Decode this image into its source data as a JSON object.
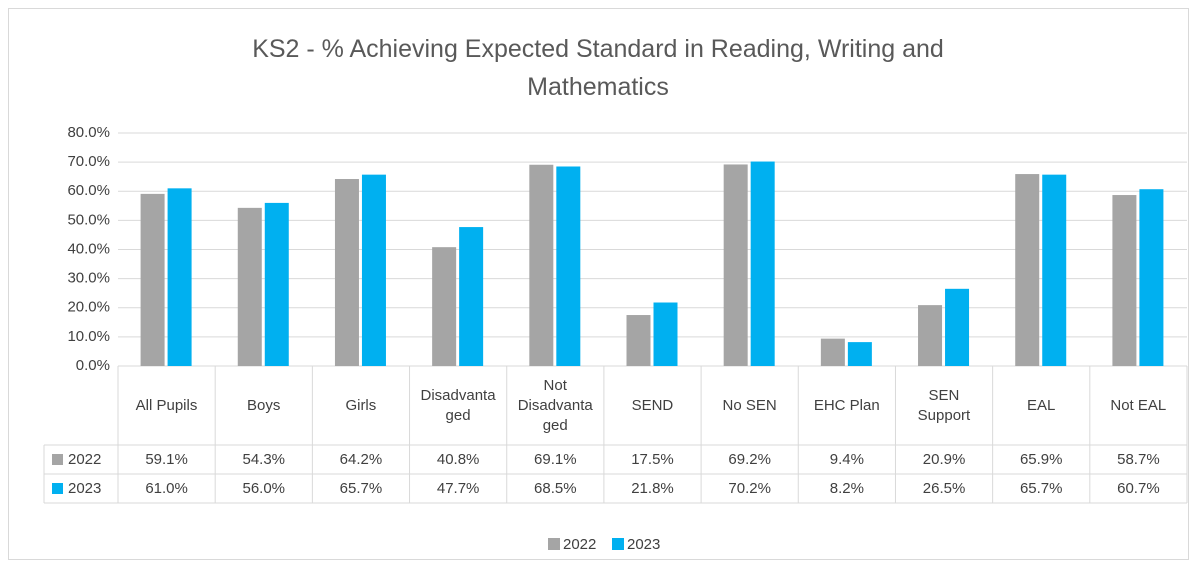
{
  "chart_data": {
    "type": "bar",
    "title": "KS2 - % Achieving Expected Standard in Reading, Writing and Mathematics",
    "categories": [
      "All Pupils",
      "Boys",
      "Girls",
      "Disadvantaged",
      "Not Disadvantaged",
      "SEND",
      "No SEN",
      "EHC Plan",
      "SEN Support",
      "EAL",
      "Not EAL"
    ],
    "series": [
      {
        "name": "2022",
        "color": "#a5a5a5",
        "values": [
          59.1,
          54.3,
          64.2,
          40.8,
          69.1,
          17.5,
          69.2,
          9.4,
          20.9,
          65.9,
          58.7
        ],
        "value_labels": [
          "59.1%",
          "54.3%",
          "64.2%",
          "40.8%",
          "69.1%",
          "17.5%",
          "69.2%",
          "9.4%",
          "20.9%",
          "65.9%",
          "58.7%"
        ]
      },
      {
        "name": "2023",
        "color": "#00b0f0",
        "values": [
          61.0,
          56.0,
          65.7,
          47.7,
          68.5,
          21.8,
          70.2,
          8.2,
          26.5,
          65.7,
          60.7
        ],
        "value_labels": [
          "61.0%",
          "56.0%",
          "65.7%",
          "47.7%",
          "68.5%",
          "21.8%",
          "70.2%",
          "8.2%",
          "26.5%",
          "65.7%",
          "60.7%"
        ]
      }
    ],
    "ylim": [
      0,
      80
    ],
    "yticks": [
      {
        "value": 0,
        "label": "0.0%"
      },
      {
        "value": 10,
        "label": "10.0%"
      },
      {
        "value": 20,
        "label": "20.0%"
      },
      {
        "value": 30,
        "label": "30.0%"
      },
      {
        "value": 40,
        "label": "40.0%"
      },
      {
        "value": 50,
        "label": "50.0%"
      },
      {
        "value": 60,
        "label": "60.0%"
      },
      {
        "value": 70,
        "label": "70.0%"
      },
      {
        "value": 80,
        "label": "80.0%"
      }
    ],
    "grid": true,
    "legend": "bottom"
  }
}
